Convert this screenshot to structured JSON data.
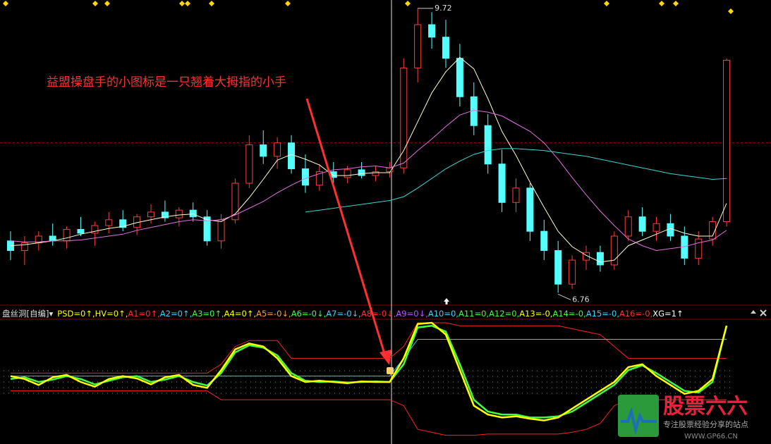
{
  "chart_data": [
    {
      "type": "candlestick",
      "up_color": "#ff3c3c",
      "down_color": "#54ffff",
      "open": [
        7.3,
        7.2,
        7.28,
        7.35,
        7.3,
        7.42,
        7.38,
        7.46,
        7.52,
        7.44,
        7.55,
        7.6,
        7.54,
        7.62,
        7.55,
        7.3,
        7.52,
        7.9,
        8.3,
        8.18,
        8.32,
        8.05,
        7.88,
        8.02,
        7.96,
        8.04,
        7.98,
        8.02,
        8.06,
        9.1,
        9.55,
        9.42,
        9.2,
        8.8,
        8.5,
        8.1,
        7.7,
        7.85,
        7.4,
        7.2,
        6.85,
        7.1,
        7.18,
        7.05,
        7.35,
        7.55,
        7.4,
        7.48,
        7.35,
        7.12,
        7.32,
        7.5
      ],
      "high": [
        7.4,
        7.35,
        7.4,
        7.48,
        7.45,
        7.55,
        7.5,
        7.6,
        7.62,
        7.58,
        7.68,
        7.72,
        7.65,
        7.7,
        7.62,
        7.58,
        7.95,
        8.4,
        8.45,
        8.38,
        8.4,
        8.2,
        8.1,
        8.12,
        8.08,
        8.12,
        8.08,
        8.12,
        9.2,
        9.72,
        9.68,
        9.6,
        9.35,
        8.95,
        8.62,
        8.25,
        7.95,
        7.9,
        7.52,
        7.3,
        7.15,
        7.25,
        7.25,
        7.4,
        7.62,
        7.65,
        7.55,
        7.58,
        7.45,
        7.4,
        7.55,
        9.2
      ],
      "low": [
        7.1,
        7.05,
        7.2,
        7.25,
        7.22,
        7.35,
        7.25,
        7.38,
        7.4,
        7.36,
        7.48,
        7.5,
        7.45,
        7.5,
        7.25,
        7.22,
        7.48,
        7.85,
        8.1,
        8.05,
        8.0,
        7.8,
        7.82,
        7.9,
        7.9,
        7.95,
        7.92,
        7.96,
        8.0,
        8.95,
        9.3,
        9.1,
        8.7,
        8.4,
        8.0,
        7.6,
        7.6,
        7.3,
        7.1,
        6.76,
        6.8,
        7.0,
        6.98,
        7.0,
        7.3,
        7.35,
        7.3,
        7.3,
        7.05,
        7.05,
        7.25,
        7.45
      ],
      "close": [
        7.2,
        7.28,
        7.35,
        7.3,
        7.42,
        7.38,
        7.46,
        7.52,
        7.44,
        7.55,
        7.6,
        7.54,
        7.62,
        7.55,
        7.3,
        7.52,
        7.9,
        8.3,
        8.18,
        8.32,
        8.05,
        7.88,
        8.02,
        7.96,
        8.04,
        7.98,
        8.02,
        8.06,
        9.1,
        9.55,
        9.42,
        9.2,
        8.8,
        8.5,
        8.1,
        7.7,
        7.85,
        7.4,
        7.2,
        6.85,
        7.1,
        7.18,
        7.05,
        7.35,
        7.55,
        7.4,
        7.48,
        7.35,
        7.12,
        7.32,
        7.5,
        9.18
      ],
      "series": [
        {
          "color": "#ffffcc",
          "values": [
            7.25,
            7.26,
            7.28,
            7.3,
            7.33,
            7.37,
            7.4,
            7.43,
            7.45,
            7.49,
            7.52,
            7.55,
            7.57,
            7.58,
            7.52,
            7.5,
            7.58,
            7.75,
            7.94,
            8.14,
            8.2,
            8.15,
            8.09,
            7.98,
            7.98,
            8.0,
            8.01,
            8.01,
            8.24,
            8.54,
            8.84,
            9.06,
            9.21,
            9.09,
            8.78,
            8.44,
            8.19,
            7.91,
            7.65,
            7.4,
            7.24,
            7.15,
            7.08,
            7.1,
            7.25,
            7.31,
            7.37,
            7.43,
            7.38,
            7.35,
            7.35,
            7.69
          ]
        },
        {
          "color": "#e070e0",
          "values": [
            7.3,
            7.29,
            7.29,
            7.3,
            7.3,
            7.31,
            7.33,
            7.35,
            7.37,
            7.41,
            7.44,
            7.47,
            7.5,
            7.52,
            7.51,
            7.52,
            7.57,
            7.64,
            7.71,
            7.8,
            7.88,
            7.95,
            8.0,
            8.04,
            8.05,
            8.07,
            8.08,
            8.06,
            8.11,
            8.24,
            8.36,
            8.49,
            8.61,
            8.66,
            8.64,
            8.6,
            8.52,
            8.44,
            8.32,
            8.15,
            7.96,
            7.78,
            7.61,
            7.46,
            7.32,
            7.25,
            7.2,
            7.22,
            7.24,
            7.28,
            7.31,
            7.41
          ]
        },
        {
          "color": "#3ad6d6",
          "values": [
            null,
            null,
            null,
            null,
            null,
            null,
            null,
            null,
            null,
            null,
            null,
            null,
            null,
            null,
            null,
            null,
            null,
            null,
            null,
            null,
            null,
            7.6,
            7.62,
            7.64,
            7.66,
            7.68,
            7.7,
            7.72,
            7.76,
            7.85,
            7.95,
            8.05,
            8.13,
            8.2,
            8.24,
            8.26,
            8.26,
            8.25,
            8.24,
            8.22,
            8.2,
            8.18,
            8.15,
            8.12,
            8.09,
            8.06,
            8.03,
            8.0,
            7.98,
            7.96,
            7.94,
            7.95
          ]
        }
      ],
      "hline": 8.32,
      "hline_color": "#a01010",
      "ylim": [
        6.69,
        9.77
      ],
      "annotation": "益盟操盘手的小图标是一只翘着大拇指的小手",
      "annotation_color": "#ff3030"
    },
    {
      "type": "line",
      "ylim": [
        -100,
        100
      ],
      "title": "盘丝洞[自编]▾",
      "items": [
        {
          "text": "PSD=0↑,",
          "color": "#ffff00"
        },
        {
          "text": "HV=0↑,",
          "color": "#ffff00"
        },
        {
          "text": "A1=0↑,",
          "color": "#ff3030"
        },
        {
          "text": "A2=0↑,",
          "color": "#40d0ff"
        },
        {
          "text": "A3=0↑,",
          "color": "#40ff40"
        },
        {
          "text": "A4=0↑,",
          "color": "#ffff00"
        },
        {
          "text": "A5=-0↓,",
          "color": "#ffa040"
        },
        {
          "text": "A6=-0↓,",
          "color": "#40ff40"
        },
        {
          "text": "A7=-0↓,",
          "color": "#40d0ff"
        },
        {
          "text": "A8=-0↓,",
          "color": "#ff3030"
        },
        {
          "text": "A9=0↓,",
          "color": "#c050ff"
        },
        {
          "text": "A10=0,",
          "color": "#40d0ff"
        },
        {
          "text": "A11=0,",
          "color": "#40ff40"
        },
        {
          "text": "A12=0,",
          "color": "#40ff40"
        },
        {
          "text": "A13=-0,",
          "color": "#ffff00"
        },
        {
          "text": "A14=-0,",
          "color": "#40ff40"
        },
        {
          "text": "A15=-0,",
          "color": "#40d0ff"
        },
        {
          "text": "A16=-0,",
          "color": "#ff3030"
        },
        {
          "text": "XG=1↑",
          "color": "#ffffff"
        }
      ],
      "series": [
        {
          "color": "#ff2020",
          "values": [
            15,
            15,
            15,
            15,
            15,
            15,
            15,
            15,
            15,
            15,
            15,
            15,
            15,
            15,
            15,
            30,
            60,
            70,
            70,
            70,
            40,
            40,
            40,
            40,
            40,
            40,
            40,
            40,
            60,
            100,
            100,
            100,
            95,
            95,
            95,
            95,
            95,
            95,
            95,
            95,
            90,
            85,
            80,
            60,
            40,
            40,
            40,
            40,
            40,
            40,
            40,
            40
          ]
        },
        {
          "color": "#ff2020",
          "values": [
            -15,
            -15,
            -15,
            -15,
            -15,
            -15,
            -15,
            -15,
            -15,
            -15,
            -15,
            -15,
            -15,
            -15,
            -15,
            -30,
            -30,
            -30,
            -30,
            -30,
            -30,
            -30,
            -30,
            -30,
            -30,
            -30,
            -30,
            -30,
            -40,
            -80,
            -85,
            -90,
            -90,
            -90,
            -88,
            -88,
            -88,
            -88,
            -88,
            -88,
            -85,
            -80,
            -70,
            -40,
            -30,
            -30,
            -30,
            -30,
            -30,
            -30,
            -30,
            -30
          ]
        },
        {
          "color": "#30c8e0",
          "values": [
            10,
            10,
            10,
            10,
            10,
            10,
            10,
            10,
            10,
            10,
            10,
            10,
            10,
            10,
            10,
            10,
            10,
            10,
            10,
            10,
            10,
            10,
            10,
            10,
            10,
            10,
            10,
            10,
            40,
            72,
            72,
            72,
            72,
            72,
            72,
            72,
            72,
            72,
            72,
            72,
            72,
            72,
            72,
            72,
            72,
            72,
            72,
            72,
            72,
            72,
            72,
            72
          ]
        },
        {
          "color": "#40ff40",
          "values": [
            5,
            8,
            0,
            4,
            10,
            5,
            -4,
            2,
            8,
            10,
            0,
            4,
            10,
            0,
            -6,
            15,
            50,
            62,
            58,
            45,
            15,
            2,
            0,
            1,
            -1,
            0,
            1,
            0,
            30,
            92,
            95,
            85,
            30,
            -30,
            -50,
            -55,
            -55,
            -60,
            -60,
            -58,
            -50,
            -35,
            -20,
            -5,
            20,
            28,
            15,
            0,
            -15,
            -18,
            0,
            95
          ]
        },
        {
          "color": "#ffff00",
          "values": [
            10,
            5,
            -5,
            8,
            12,
            0,
            -8,
            5,
            10,
            6,
            -4,
            8,
            12,
            -5,
            -10,
            20,
            55,
            65,
            60,
            40,
            10,
            0,
            2,
            0,
            -2,
            1,
            0,
            0,
            40,
            98,
            100,
            80,
            20,
            -40,
            -55,
            -60,
            -58,
            -62,
            -65,
            -60,
            -45,
            -30,
            -15,
            0,
            25,
            30,
            10,
            -5,
            -20,
            -15,
            5,
            95
          ]
        }
      ]
    }
  ],
  "watermark": {
    "brand": "股票六六",
    "slogan": "专注股票经验分享的站点",
    "url": "WWW.GP66.CN"
  }
}
